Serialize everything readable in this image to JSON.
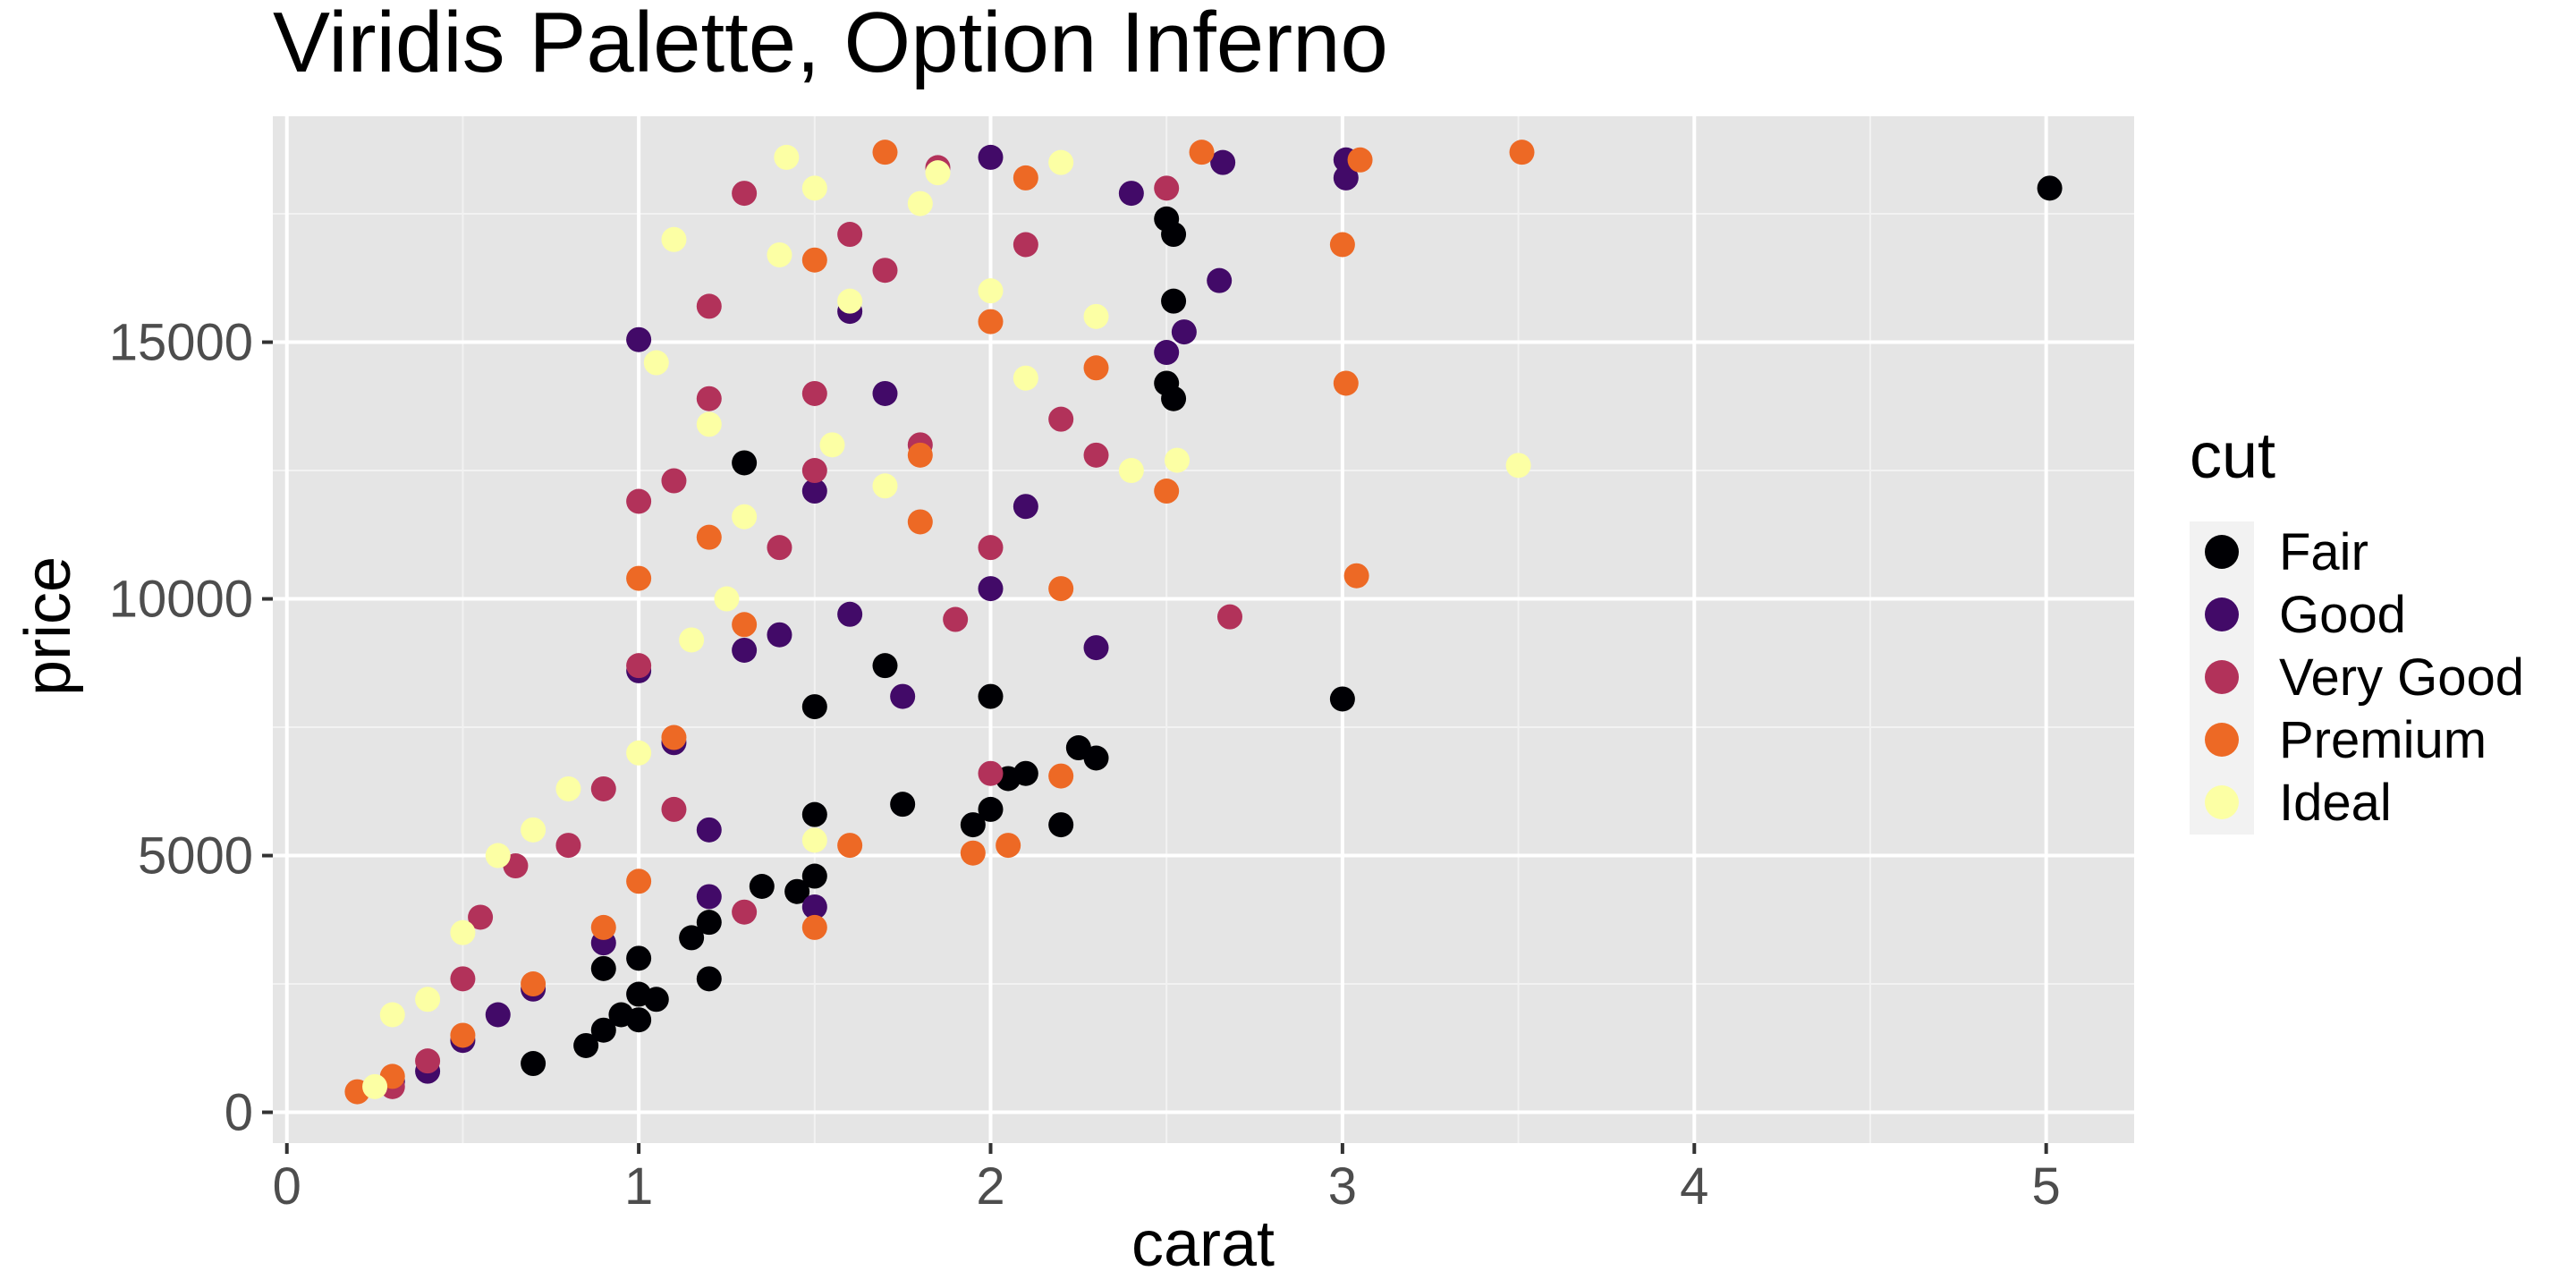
{
  "chart_data": {
    "type": "scatter",
    "title": "Viridis Palette, Option Inferno",
    "xlabel": "carat",
    "ylabel": "price",
    "xlim": [
      -0.04,
      5.25
    ],
    "ylim": [
      -600,
      19400
    ],
    "x_ticks": [
      0,
      1,
      2,
      3,
      4,
      5
    ],
    "x_tick_labels": [
      "0",
      "1",
      "2",
      "3",
      "4",
      "5"
    ],
    "y_ticks": [
      0,
      5000,
      10000,
      15000
    ],
    "y_tick_labels": [
      "0",
      "5000",
      "10000",
      "15000"
    ],
    "grid": true,
    "legend": {
      "title": "cut",
      "placement": "right"
    },
    "series": [
      {
        "name": "Fair",
        "color": "#000004",
        "points": [
          [
            0.7,
            950
          ],
          [
            0.85,
            1300
          ],
          [
            0.9,
            1600
          ],
          [
            0.95,
            1900
          ],
          [
            1.0,
            1800
          ],
          [
            1.0,
            2300
          ],
          [
            1.05,
            2200
          ],
          [
            1.2,
            2600
          ],
          [
            1.2,
            3700
          ],
          [
            1.3,
            12650
          ],
          [
            1.35,
            4400
          ],
          [
            1.45,
            4300
          ],
          [
            1.5,
            4600
          ],
          [
            1.5,
            5800
          ],
          [
            1.5,
            7900
          ],
          [
            1.7,
            8700
          ],
          [
            1.75,
            6000
          ],
          [
            1.95,
            5600
          ],
          [
            2.0,
            5900
          ],
          [
            2.05,
            6500
          ],
          [
            2.1,
            6600
          ],
          [
            2.0,
            8100
          ],
          [
            2.2,
            5600
          ],
          [
            2.25,
            7100
          ],
          [
            2.3,
            6900
          ],
          [
            2.5,
            17400
          ],
          [
            2.52,
            17100
          ],
          [
            2.5,
            14200
          ],
          [
            2.52,
            13900
          ],
          [
            2.52,
            15800
          ],
          [
            3.0,
            8050
          ],
          [
            5.01,
            18000
          ],
          [
            1.0,
            3000
          ],
          [
            0.9,
            2800
          ],
          [
            1.15,
            3400
          ]
        ]
      },
      {
        "name": "Good",
        "color": "#420A68",
        "points": [
          [
            0.3,
            600
          ],
          [
            0.4,
            800
          ],
          [
            0.5,
            1400
          ],
          [
            0.6,
            1900
          ],
          [
            0.7,
            2400
          ],
          [
            0.9,
            3300
          ],
          [
            1.0,
            15050
          ],
          [
            1.1,
            7200
          ],
          [
            1.2,
            5500
          ],
          [
            1.3,
            9000
          ],
          [
            1.4,
            9300
          ],
          [
            1.5,
            4000
          ],
          [
            1.6,
            9700
          ],
          [
            1.7,
            14000
          ],
          [
            1.75,
            8100
          ],
          [
            2.0,
            18600
          ],
          [
            2.0,
            10200
          ],
          [
            2.1,
            11800
          ],
          [
            2.3,
            9050
          ],
          [
            2.5,
            14800
          ],
          [
            2.55,
            15200
          ],
          [
            2.4,
            17900
          ],
          [
            2.65,
            16200
          ],
          [
            2.66,
            18500
          ],
          [
            3.01,
            18550
          ],
          [
            3.01,
            18200
          ],
          [
            1.2,
            4200
          ],
          [
            1.0,
            8600
          ],
          [
            1.5,
            12100
          ],
          [
            1.6,
            15600
          ]
        ]
      },
      {
        "name": "Very Good",
        "color": "#B2325A",
        "points": [
          [
            0.3,
            500
          ],
          [
            0.4,
            1000
          ],
          [
            0.5,
            2600
          ],
          [
            0.55,
            3800
          ],
          [
            0.65,
            4800
          ],
          [
            0.8,
            5200
          ],
          [
            0.9,
            6300
          ],
          [
            1.0,
            11900
          ],
          [
            1.0,
            8700
          ],
          [
            1.1,
            12300
          ],
          [
            1.2,
            15700
          ],
          [
            1.3,
            17900
          ],
          [
            1.2,
            13900
          ],
          [
            1.4,
            11000
          ],
          [
            1.5,
            14000
          ],
          [
            1.6,
            17100
          ],
          [
            1.7,
            16400
          ],
          [
            1.85,
            18400
          ],
          [
            1.9,
            9600
          ],
          [
            2.0,
            6600
          ],
          [
            2.0,
            11000
          ],
          [
            2.1,
            16900
          ],
          [
            2.3,
            12800
          ],
          [
            2.5,
            18000
          ],
          [
            2.68,
            9650
          ],
          [
            1.3,
            3900
          ],
          [
            1.1,
            5900
          ],
          [
            1.5,
            12500
          ],
          [
            1.8,
            13000
          ],
          [
            2.2,
            13500
          ]
        ]
      },
      {
        "name": "Premium",
        "color": "#ED6925",
        "points": [
          [
            0.2,
            400
          ],
          [
            0.3,
            700
          ],
          [
            0.5,
            1500
          ],
          [
            0.7,
            2500
          ],
          [
            0.9,
            3600
          ],
          [
            1.0,
            4500
          ],
          [
            1.0,
            10400
          ],
          [
            1.1,
            7300
          ],
          [
            1.2,
            11200
          ],
          [
            1.3,
            9500
          ],
          [
            1.5,
            3600
          ],
          [
            1.5,
            16600
          ],
          [
            1.6,
            5200
          ],
          [
            1.7,
            18700
          ],
          [
            1.8,
            12800
          ],
          [
            1.95,
            5050
          ],
          [
            2.0,
            15400
          ],
          [
            2.05,
            5200
          ],
          [
            2.1,
            18200
          ],
          [
            2.2,
            6550
          ],
          [
            2.3,
            14500
          ],
          [
            2.5,
            12100
          ],
          [
            2.6,
            18700
          ],
          [
            3.0,
            16900
          ],
          [
            3.01,
            14200
          ],
          [
            3.05,
            18550
          ],
          [
            3.04,
            10450
          ],
          [
            3.51,
            18700
          ],
          [
            2.2,
            10200
          ],
          [
            1.8,
            11500
          ]
        ]
      },
      {
        "name": "Ideal",
        "color": "#FCFFA4",
        "points": [
          [
            0.25,
            500
          ],
          [
            0.3,
            1900
          ],
          [
            0.4,
            2200
          ],
          [
            0.5,
            3500
          ],
          [
            0.6,
            5000
          ],
          [
            0.7,
            5500
          ],
          [
            0.8,
            6300
          ],
          [
            1.0,
            7000
          ],
          [
            1.05,
            14600
          ],
          [
            1.1,
            17000
          ],
          [
            1.2,
            13400
          ],
          [
            1.25,
            10000
          ],
          [
            1.3,
            11600
          ],
          [
            1.4,
            16700
          ],
          [
            1.42,
            18600
          ],
          [
            1.5,
            18000
          ],
          [
            1.55,
            13000
          ],
          [
            1.6,
            15800
          ],
          [
            1.7,
            12200
          ],
          [
            1.8,
            17700
          ],
          [
            1.85,
            18300
          ],
          [
            2.0,
            16000
          ],
          [
            2.1,
            14300
          ],
          [
            2.2,
            18500
          ],
          [
            2.3,
            15500
          ],
          [
            2.4,
            12500
          ],
          [
            2.53,
            12700
          ],
          [
            3.5,
            12600
          ],
          [
            1.5,
            5300
          ],
          [
            1.15,
            9200
          ]
        ]
      }
    ]
  }
}
